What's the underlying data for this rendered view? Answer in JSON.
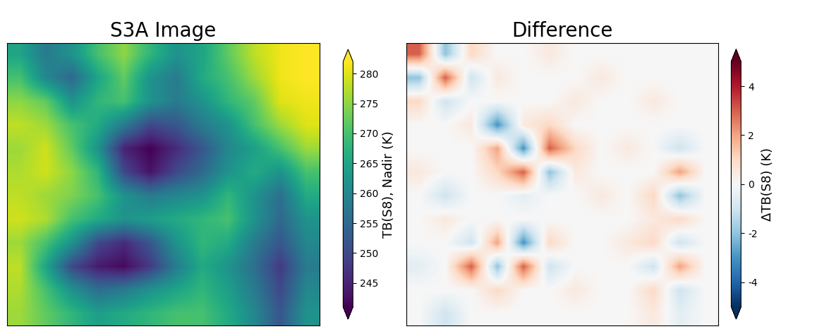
{
  "chart_data": [
    {
      "type": "heatmap",
      "title": "S3A Image",
      "color": "viridis",
      "tick_labels": false,
      "colorbar_label": "TB(S8), Nadir (K)",
      "colorbar_range": [
        241,
        282
      ],
      "colorbar_ticks": [
        245,
        250,
        255,
        260,
        265,
        270,
        275,
        280
      ],
      "cells": [
        [
          265,
          258,
          262,
          270,
          275,
          268,
          262,
          265,
          272,
          278,
          281,
          282
        ],
        [
          270,
          260,
          255,
          265,
          272,
          262,
          258,
          266,
          270,
          276,
          281,
          282
        ],
        [
          275,
          272,
          262,
          268,
          270,
          262,
          258,
          262,
          268,
          272,
          280,
          281
        ],
        [
          278,
          276,
          270,
          266,
          258,
          250,
          252,
          258,
          262,
          270,
          276,
          280
        ],
        [
          276,
          279,
          272,
          262,
          245,
          241,
          246,
          252,
          260,
          264,
          270,
          276
        ],
        [
          277,
          279,
          275,
          268,
          250,
          243,
          250,
          255,
          262,
          266,
          262,
          270
        ],
        [
          278,
          276,
          274,
          270,
          262,
          258,
          260,
          262,
          268,
          262,
          256,
          266
        ],
        [
          279,
          277,
          270,
          266,
          262,
          264,
          266,
          268,
          270,
          262,
          255,
          262
        ],
        [
          276,
          270,
          262,
          250,
          246,
          252,
          262,
          268,
          266,
          258,
          252,
          260
        ],
        [
          278,
          265,
          250,
          244,
          242,
          248,
          258,
          266,
          262,
          256,
          248,
          258
        ],
        [
          277,
          270,
          262,
          256,
          258,
          262,
          265,
          268,
          264,
          258,
          250,
          260
        ],
        [
          276,
          272,
          268,
          264,
          266,
          268,
          270,
          270,
          266,
          260,
          252,
          262
        ]
      ]
    },
    {
      "type": "heatmap",
      "title": "Difference",
      "color": "RdBu_r",
      "tick_labels": false,
      "colorbar_label": "ΔTB(S8) (K)",
      "colorbar_range": [
        -5,
        5
      ],
      "colorbar_ticks": [
        -4,
        -2,
        0,
        2,
        4
      ],
      "cells": [
        [
          3,
          -2,
          1,
          0,
          0,
          0.5,
          0,
          0,
          0,
          0,
          0,
          0
        ],
        [
          -2,
          3,
          -1,
          0.5,
          0,
          0,
          0,
          0.5,
          0,
          0,
          0,
          0
        ],
        [
          1,
          -1,
          0,
          0,
          0,
          0,
          0.5,
          0,
          0,
          0.5,
          0,
          0
        ],
        [
          0,
          0,
          0.5,
          -3,
          0.5,
          1,
          0,
          0,
          0,
          0,
          0,
          0
        ],
        [
          0,
          0,
          0,
          2,
          -3,
          3,
          1,
          0,
          0.5,
          0,
          -1,
          0
        ],
        [
          0.5,
          0,
          0,
          1,
          3,
          -2,
          0.5,
          0,
          0,
          0,
          2,
          0
        ],
        [
          0,
          -1,
          0,
          0,
          -0.5,
          0,
          0,
          0.5,
          0,
          1,
          -2,
          0
        ],
        [
          0,
          0.5,
          0,
          0,
          0,
          0,
          0,
          0,
          0,
          0.5,
          1,
          0
        ],
        [
          0,
          0,
          -1,
          2,
          -3,
          1,
          0,
          0,
          0.5,
          1,
          -1,
          0
        ],
        [
          -0.5,
          0,
          3,
          -2,
          3,
          -1,
          0,
          0,
          0,
          -1,
          2,
          0
        ],
        [
          0,
          0,
          0,
          1,
          0,
          0,
          0.5,
          0,
          0,
          1,
          -1,
          0
        ],
        [
          0,
          -1,
          0,
          0,
          0,
          0,
          0,
          0,
          0,
          0.5,
          -0.5,
          0
        ]
      ]
    }
  ]
}
